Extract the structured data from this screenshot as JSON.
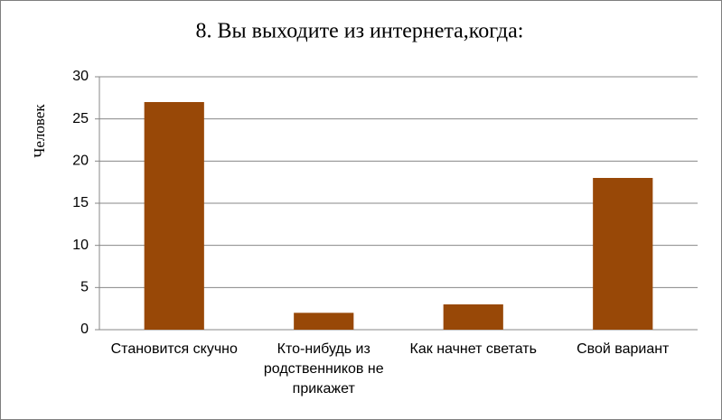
{
  "chart_data": {
    "type": "bar",
    "title": "8. Вы выходите из интернета,когда:",
    "y_label": "Человек",
    "categories": [
      "Становится скучно",
      "Кто-нибудь из родственников не прикажет",
      "Как начнет светать",
      "Свой вариант"
    ],
    "values": [
      27,
      2,
      3,
      18
    ],
    "color": "#984807",
    "ylim": [
      0,
      30
    ],
    "yticks": [
      0,
      5,
      10,
      15,
      20,
      25,
      30
    ],
    "grid": true
  }
}
